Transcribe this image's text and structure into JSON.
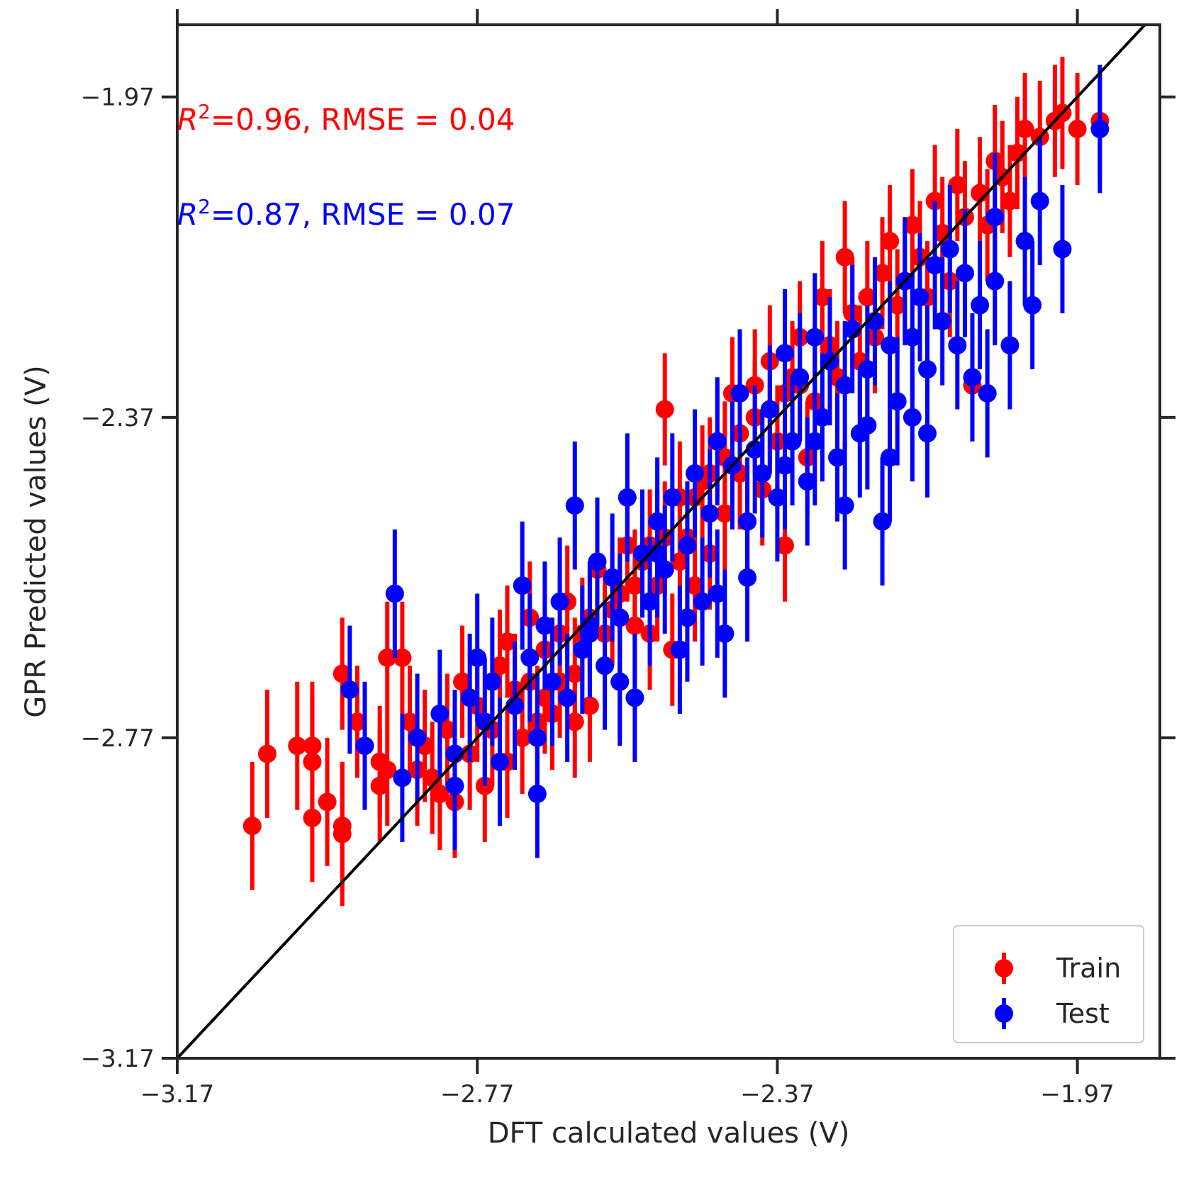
{
  "colors": {
    "train": "#ff0000",
    "test": "#0000ff",
    "identity": "#000000",
    "axis": "#262626"
  },
  "chart_data": {
    "type": "scatter",
    "xlabel": "DFT calculated values (V)",
    "ylabel": "GPR Predicted values (V)",
    "xlim": [
      -3.17,
      -1.86
    ],
    "ylim": [
      -3.17,
      -1.88
    ],
    "xticks": [
      -3.17,
      -2.77,
      -2.37,
      -1.97
    ],
    "yticks": [
      -3.17,
      -2.77,
      -2.37,
      -1.97
    ],
    "xtick_labels": [
      "−3.17",
      "−2.77",
      "−2.37",
      "−1.97"
    ],
    "ytick_labels": [
      "−3.17",
      "−2.77",
      "−2.37",
      "−1.97"
    ],
    "grid": false,
    "legend_position": "bottom-right",
    "identity_line": true,
    "annotations": [
      {
        "series": "train",
        "r2_label": "R",
        "r2_sup": "2",
        "text": "=0.96, RMSE = 0.04"
      },
      {
        "series": "test",
        "r2_label": "R",
        "r2_sup": "2",
        "text": "=0.87, RMSE = 0.07"
      }
    ],
    "series": [
      {
        "name": "Train",
        "color": "#ff0000",
        "points": [
          [
            -3.07,
            -2.88,
            0.08
          ],
          [
            -3.05,
            -2.79,
            0.08
          ],
          [
            -3.01,
            -2.78,
            0.08
          ],
          [
            -2.99,
            -2.78,
            0.08
          ],
          [
            -2.99,
            -2.8,
            0.08
          ],
          [
            -2.97,
            -2.85,
            0.08
          ],
          [
            -2.99,
            -2.87,
            0.08
          ],
          [
            -2.95,
            -2.88,
            0.08
          ],
          [
            -2.95,
            -2.89,
            0.09
          ],
          [
            -2.95,
            -2.69,
            0.07
          ],
          [
            -2.93,
            -2.75,
            0.07
          ],
          [
            -2.9,
            -2.8,
            0.07
          ],
          [
            -2.9,
            -2.83,
            0.07
          ],
          [
            -2.89,
            -2.81,
            0.07
          ],
          [
            -2.89,
            -2.67,
            0.07
          ],
          [
            -2.87,
            -2.67,
            0.07
          ],
          [
            -2.86,
            -2.75,
            0.07
          ],
          [
            -2.85,
            -2.81,
            0.07
          ],
          [
            -2.84,
            -2.78,
            0.07
          ],
          [
            -2.83,
            -2.82,
            0.07
          ],
          [
            -2.82,
            -2.84,
            0.07
          ],
          [
            -2.81,
            -2.76,
            0.07
          ],
          [
            -2.8,
            -2.85,
            0.07
          ],
          [
            -2.79,
            -2.7,
            0.07
          ],
          [
            -2.78,
            -2.79,
            0.07
          ],
          [
            -2.77,
            -2.73,
            0.07
          ],
          [
            -2.76,
            -2.83,
            0.07
          ],
          [
            -2.75,
            -2.76,
            0.07
          ],
          [
            -2.74,
            -2.68,
            0.07
          ],
          [
            -2.73,
            -2.8,
            0.07
          ],
          [
            -2.72,
            -2.71,
            0.07
          ],
          [
            -2.71,
            -2.77,
            0.07
          ],
          [
            -2.7,
            -2.62,
            0.07
          ],
          [
            -2.69,
            -2.75,
            0.07
          ],
          [
            -2.68,
            -2.66,
            0.07
          ],
          [
            -2.67,
            -2.74,
            0.07
          ],
          [
            -2.66,
            -2.7,
            0.07
          ],
          [
            -2.65,
            -2.6,
            0.07
          ],
          [
            -2.64,
            -2.75,
            0.07
          ],
          [
            -2.63,
            -2.64,
            0.07
          ],
          [
            -2.62,
            -2.73,
            0.07
          ],
          [
            -2.61,
            -2.56,
            0.07
          ],
          [
            -2.6,
            -2.68,
            0.07
          ],
          [
            -2.59,
            -2.61,
            0.07
          ],
          [
            -2.58,
            -2.7,
            0.07
          ],
          [
            -2.57,
            -2.53,
            0.07
          ],
          [
            -2.56,
            -2.63,
            0.07
          ],
          [
            -2.55,
            -2.55,
            0.07
          ],
          [
            -2.54,
            -2.64,
            0.07
          ],
          [
            -2.53,
            -2.58,
            0.07
          ],
          [
            -2.52,
            -2.36,
            0.07
          ],
          [
            -2.51,
            -2.66,
            0.07
          ],
          [
            -2.5,
            -2.47,
            0.07
          ],
          [
            -2.49,
            -2.52,
            0.07
          ],
          [
            -2.48,
            -2.58,
            0.07
          ],
          [
            -2.47,
            -2.45,
            0.07
          ],
          [
            -2.46,
            -2.54,
            0.07
          ],
          [
            -2.45,
            -2.4,
            0.07
          ],
          [
            -2.44,
            -2.49,
            0.07
          ],
          [
            -2.43,
            -2.34,
            0.07
          ],
          [
            -2.42,
            -2.44,
            0.07
          ],
          [
            -2.41,
            -2.5,
            0.07
          ],
          [
            -2.4,
            -2.33,
            0.07
          ],
          [
            -2.39,
            -2.46,
            0.07
          ],
          [
            -2.38,
            -2.3,
            0.07
          ],
          [
            -2.37,
            -2.4,
            0.07
          ],
          [
            -2.36,
            -2.53,
            0.07
          ],
          [
            -2.35,
            -2.32,
            0.07
          ],
          [
            -2.34,
            -2.27,
            0.07
          ],
          [
            -2.33,
            -2.42,
            0.07
          ],
          [
            -2.32,
            -2.35,
            0.07
          ],
          [
            -2.31,
            -2.22,
            0.07
          ],
          [
            -2.3,
            -2.28,
            0.07
          ],
          [
            -2.29,
            -2.32,
            0.07
          ],
          [
            -2.28,
            -2.17,
            0.07
          ],
          [
            -2.27,
            -2.24,
            0.07
          ],
          [
            -2.26,
            -2.3,
            0.07
          ],
          [
            -2.25,
            -2.22,
            0.07
          ],
          [
            -2.24,
            -2.27,
            0.07
          ],
          [
            -2.23,
            -2.19,
            0.07
          ],
          [
            -2.22,
            -2.15,
            0.07
          ],
          [
            -2.21,
            -2.23,
            0.07
          ],
          [
            -2.2,
            -2.2,
            0.07
          ],
          [
            -2.19,
            -2.13,
            0.07
          ],
          [
            -2.18,
            -2.17,
            0.07
          ],
          [
            -2.17,
            -2.22,
            0.07
          ],
          [
            -2.16,
            -2.1,
            0.07
          ],
          [
            -2.15,
            -2.14,
            0.07
          ],
          [
            -2.14,
            -2.2,
            0.07
          ],
          [
            -2.13,
            -2.08,
            0.07
          ],
          [
            -2.12,
            -2.12,
            0.07
          ],
          [
            -2.11,
            -2.33,
            0.07
          ],
          [
            -2.1,
            -2.09,
            0.07
          ],
          [
            -2.09,
            -2.13,
            0.07
          ],
          [
            -2.08,
            -2.05,
            0.07
          ],
          [
            -2.07,
            -2.07,
            0.07
          ],
          [
            -2.06,
            -2.1,
            0.07
          ],
          [
            -2.05,
            -2.04,
            0.07
          ],
          [
            -2.04,
            -2.01,
            0.07
          ],
          [
            -2.02,
            -2.02,
            0.07
          ],
          [
            -2.0,
            -2.0,
            0.07
          ],
          [
            -1.99,
            -1.99,
            0.07
          ],
          [
            -1.97,
            -2.01,
            0.07
          ],
          [
            -1.94,
            -2.0,
            0.07
          ],
          [
            -2.73,
            -2.65,
            0.07
          ],
          [
            -2.7,
            -2.7,
            0.07
          ],
          [
            -2.68,
            -2.72,
            0.07
          ],
          [
            -2.66,
            -2.64,
            0.07
          ],
          [
            -2.64,
            -2.69,
            0.07
          ],
          [
            -2.62,
            -2.62,
            0.07
          ],
          [
            -2.6,
            -2.64,
            0.07
          ],
          [
            -2.58,
            -2.59,
            0.07
          ],
          [
            -2.56,
            -2.58,
            0.07
          ],
          [
            -2.54,
            -2.53,
            0.07
          ],
          [
            -2.52,
            -2.52,
            0.07
          ],
          [
            -2.5,
            -2.55,
            0.07
          ],
          [
            -2.48,
            -2.47,
            0.07
          ],
          [
            -2.46,
            -2.44,
            0.07
          ],
          [
            -2.44,
            -2.42,
            0.07
          ],
          [
            -2.42,
            -2.39,
            0.07
          ],
          [
            -2.4,
            -2.37,
            0.07
          ],
          [
            -2.38,
            -2.36,
            0.07
          ],
          [
            -2.36,
            -2.34,
            0.07
          ],
          [
            -2.34,
            -2.33,
            0.07
          ]
        ]
      },
      {
        "name": "Test",
        "color": "#0000ff",
        "points": [
          [
            -2.94,
            -2.71,
            0.08
          ],
          [
            -2.92,
            -2.78,
            0.08
          ],
          [
            -2.88,
            -2.59,
            0.08
          ],
          [
            -2.85,
            -2.77,
            0.08
          ],
          [
            -2.82,
            -2.74,
            0.08
          ],
          [
            -2.8,
            -2.79,
            0.08
          ],
          [
            -2.78,
            -2.72,
            0.08
          ],
          [
            -2.76,
            -2.75,
            0.08
          ],
          [
            -2.75,
            -2.7,
            0.08
          ],
          [
            -2.74,
            -2.8,
            0.08
          ],
          [
            -2.72,
            -2.73,
            0.08
          ],
          [
            -2.71,
            -2.58,
            0.08
          ],
          [
            -2.7,
            -2.67,
            0.08
          ],
          [
            -2.69,
            -2.77,
            0.08
          ],
          [
            -2.68,
            -2.63,
            0.08
          ],
          [
            -2.67,
            -2.7,
            0.08
          ],
          [
            -2.66,
            -2.6,
            0.08
          ],
          [
            -2.65,
            -2.72,
            0.08
          ],
          [
            -2.64,
            -2.48,
            0.08
          ],
          [
            -2.63,
            -2.66,
            0.08
          ],
          [
            -2.62,
            -2.64,
            0.08
          ],
          [
            -2.61,
            -2.55,
            0.08
          ],
          [
            -2.6,
            -2.68,
            0.08
          ],
          [
            -2.59,
            -2.57,
            0.08
          ],
          [
            -2.58,
            -2.62,
            0.08
          ],
          [
            -2.57,
            -2.47,
            0.08
          ],
          [
            -2.56,
            -2.72,
            0.08
          ],
          [
            -2.55,
            -2.54,
            0.08
          ],
          [
            -2.54,
            -2.6,
            0.08
          ],
          [
            -2.53,
            -2.5,
            0.08
          ],
          [
            -2.52,
            -2.56,
            0.08
          ],
          [
            -2.51,
            -2.47,
            0.08
          ],
          [
            -2.5,
            -2.66,
            0.08
          ],
          [
            -2.49,
            -2.53,
            0.08
          ],
          [
            -2.48,
            -2.44,
            0.08
          ],
          [
            -2.47,
            -2.6,
            0.08
          ],
          [
            -2.46,
            -2.49,
            0.08
          ],
          [
            -2.45,
            -2.4,
            0.08
          ],
          [
            -2.44,
            -2.64,
            0.08
          ],
          [
            -2.43,
            -2.43,
            0.08
          ],
          [
            -2.42,
            -2.34,
            0.08
          ],
          [
            -2.41,
            -2.5,
            0.08
          ],
          [
            -2.4,
            -2.41,
            0.08
          ],
          [
            -2.39,
            -2.44,
            0.08
          ],
          [
            -2.38,
            -2.36,
            0.08
          ],
          [
            -2.37,
            -2.47,
            0.08
          ],
          [
            -2.36,
            -2.29,
            0.08
          ],
          [
            -2.35,
            -2.4,
            0.08
          ],
          [
            -2.34,
            -2.32,
            0.08
          ],
          [
            -2.33,
            -2.45,
            0.08
          ],
          [
            -2.32,
            -2.27,
            0.08
          ],
          [
            -2.31,
            -2.37,
            0.08
          ],
          [
            -2.3,
            -2.3,
            0.08
          ],
          [
            -2.29,
            -2.42,
            0.08
          ],
          [
            -2.28,
            -2.33,
            0.08
          ],
          [
            -2.27,
            -2.26,
            0.08
          ],
          [
            -2.26,
            -2.39,
            0.08
          ],
          [
            -2.25,
            -2.31,
            0.08
          ],
          [
            -2.24,
            -2.25,
            0.08
          ],
          [
            -2.23,
            -2.5,
            0.08
          ],
          [
            -2.22,
            -2.28,
            0.08
          ],
          [
            -2.21,
            -2.35,
            0.08
          ],
          [
            -2.2,
            -2.2,
            0.08
          ],
          [
            -2.19,
            -2.27,
            0.08
          ],
          [
            -2.18,
            -2.22,
            0.08
          ],
          [
            -2.17,
            -2.31,
            0.08
          ],
          [
            -2.16,
            -2.18,
            0.08
          ],
          [
            -2.15,
            -2.25,
            0.08
          ],
          [
            -2.14,
            -2.16,
            0.08
          ],
          [
            -2.13,
            -2.28,
            0.08
          ],
          [
            -2.12,
            -2.19,
            0.08
          ],
          [
            -2.11,
            -2.32,
            0.08
          ],
          [
            -2.1,
            -2.23,
            0.08
          ],
          [
            -2.09,
            -2.34,
            0.08
          ],
          [
            -2.08,
            -2.2,
            0.08
          ],
          [
            -2.04,
            -2.15,
            0.08
          ],
          [
            -2.02,
            -2.1,
            0.08
          ],
          [
            -1.99,
            -2.16,
            0.08
          ],
          [
            -1.94,
            -2.01,
            0.08
          ],
          [
            -2.87,
            -2.82,
            0.08
          ],
          [
            -2.8,
            -2.83,
            0.08
          ],
          [
            -2.77,
            -2.67,
            0.08
          ],
          [
            -2.69,
            -2.84,
            0.08
          ],
          [
            -2.62,
            -2.63,
            0.08
          ],
          [
            -2.58,
            -2.7,
            0.08
          ],
          [
            -2.53,
            -2.54,
            0.08
          ],
          [
            -2.49,
            -2.62,
            0.08
          ],
          [
            -2.45,
            -2.59,
            0.08
          ],
          [
            -2.41,
            -2.57,
            0.08
          ],
          [
            -2.36,
            -2.43,
            0.08
          ],
          [
            -2.32,
            -2.4,
            0.08
          ],
          [
            -2.28,
            -2.48,
            0.08
          ],
          [
            -2.25,
            -2.38,
            0.08
          ],
          [
            -2.22,
            -2.42,
            0.08
          ],
          [
            -2.19,
            -2.37,
            0.08
          ],
          [
            -2.17,
            -2.39,
            0.08
          ],
          [
            -2.08,
            -2.12,
            0.08
          ],
          [
            -2.06,
            -2.28,
            0.08
          ],
          [
            -2.03,
            -2.23,
            0.08
          ]
        ]
      }
    ],
    "legend": [
      {
        "series": "train",
        "label": "Train"
      },
      {
        "series": "test",
        "label": "Test"
      }
    ]
  }
}
